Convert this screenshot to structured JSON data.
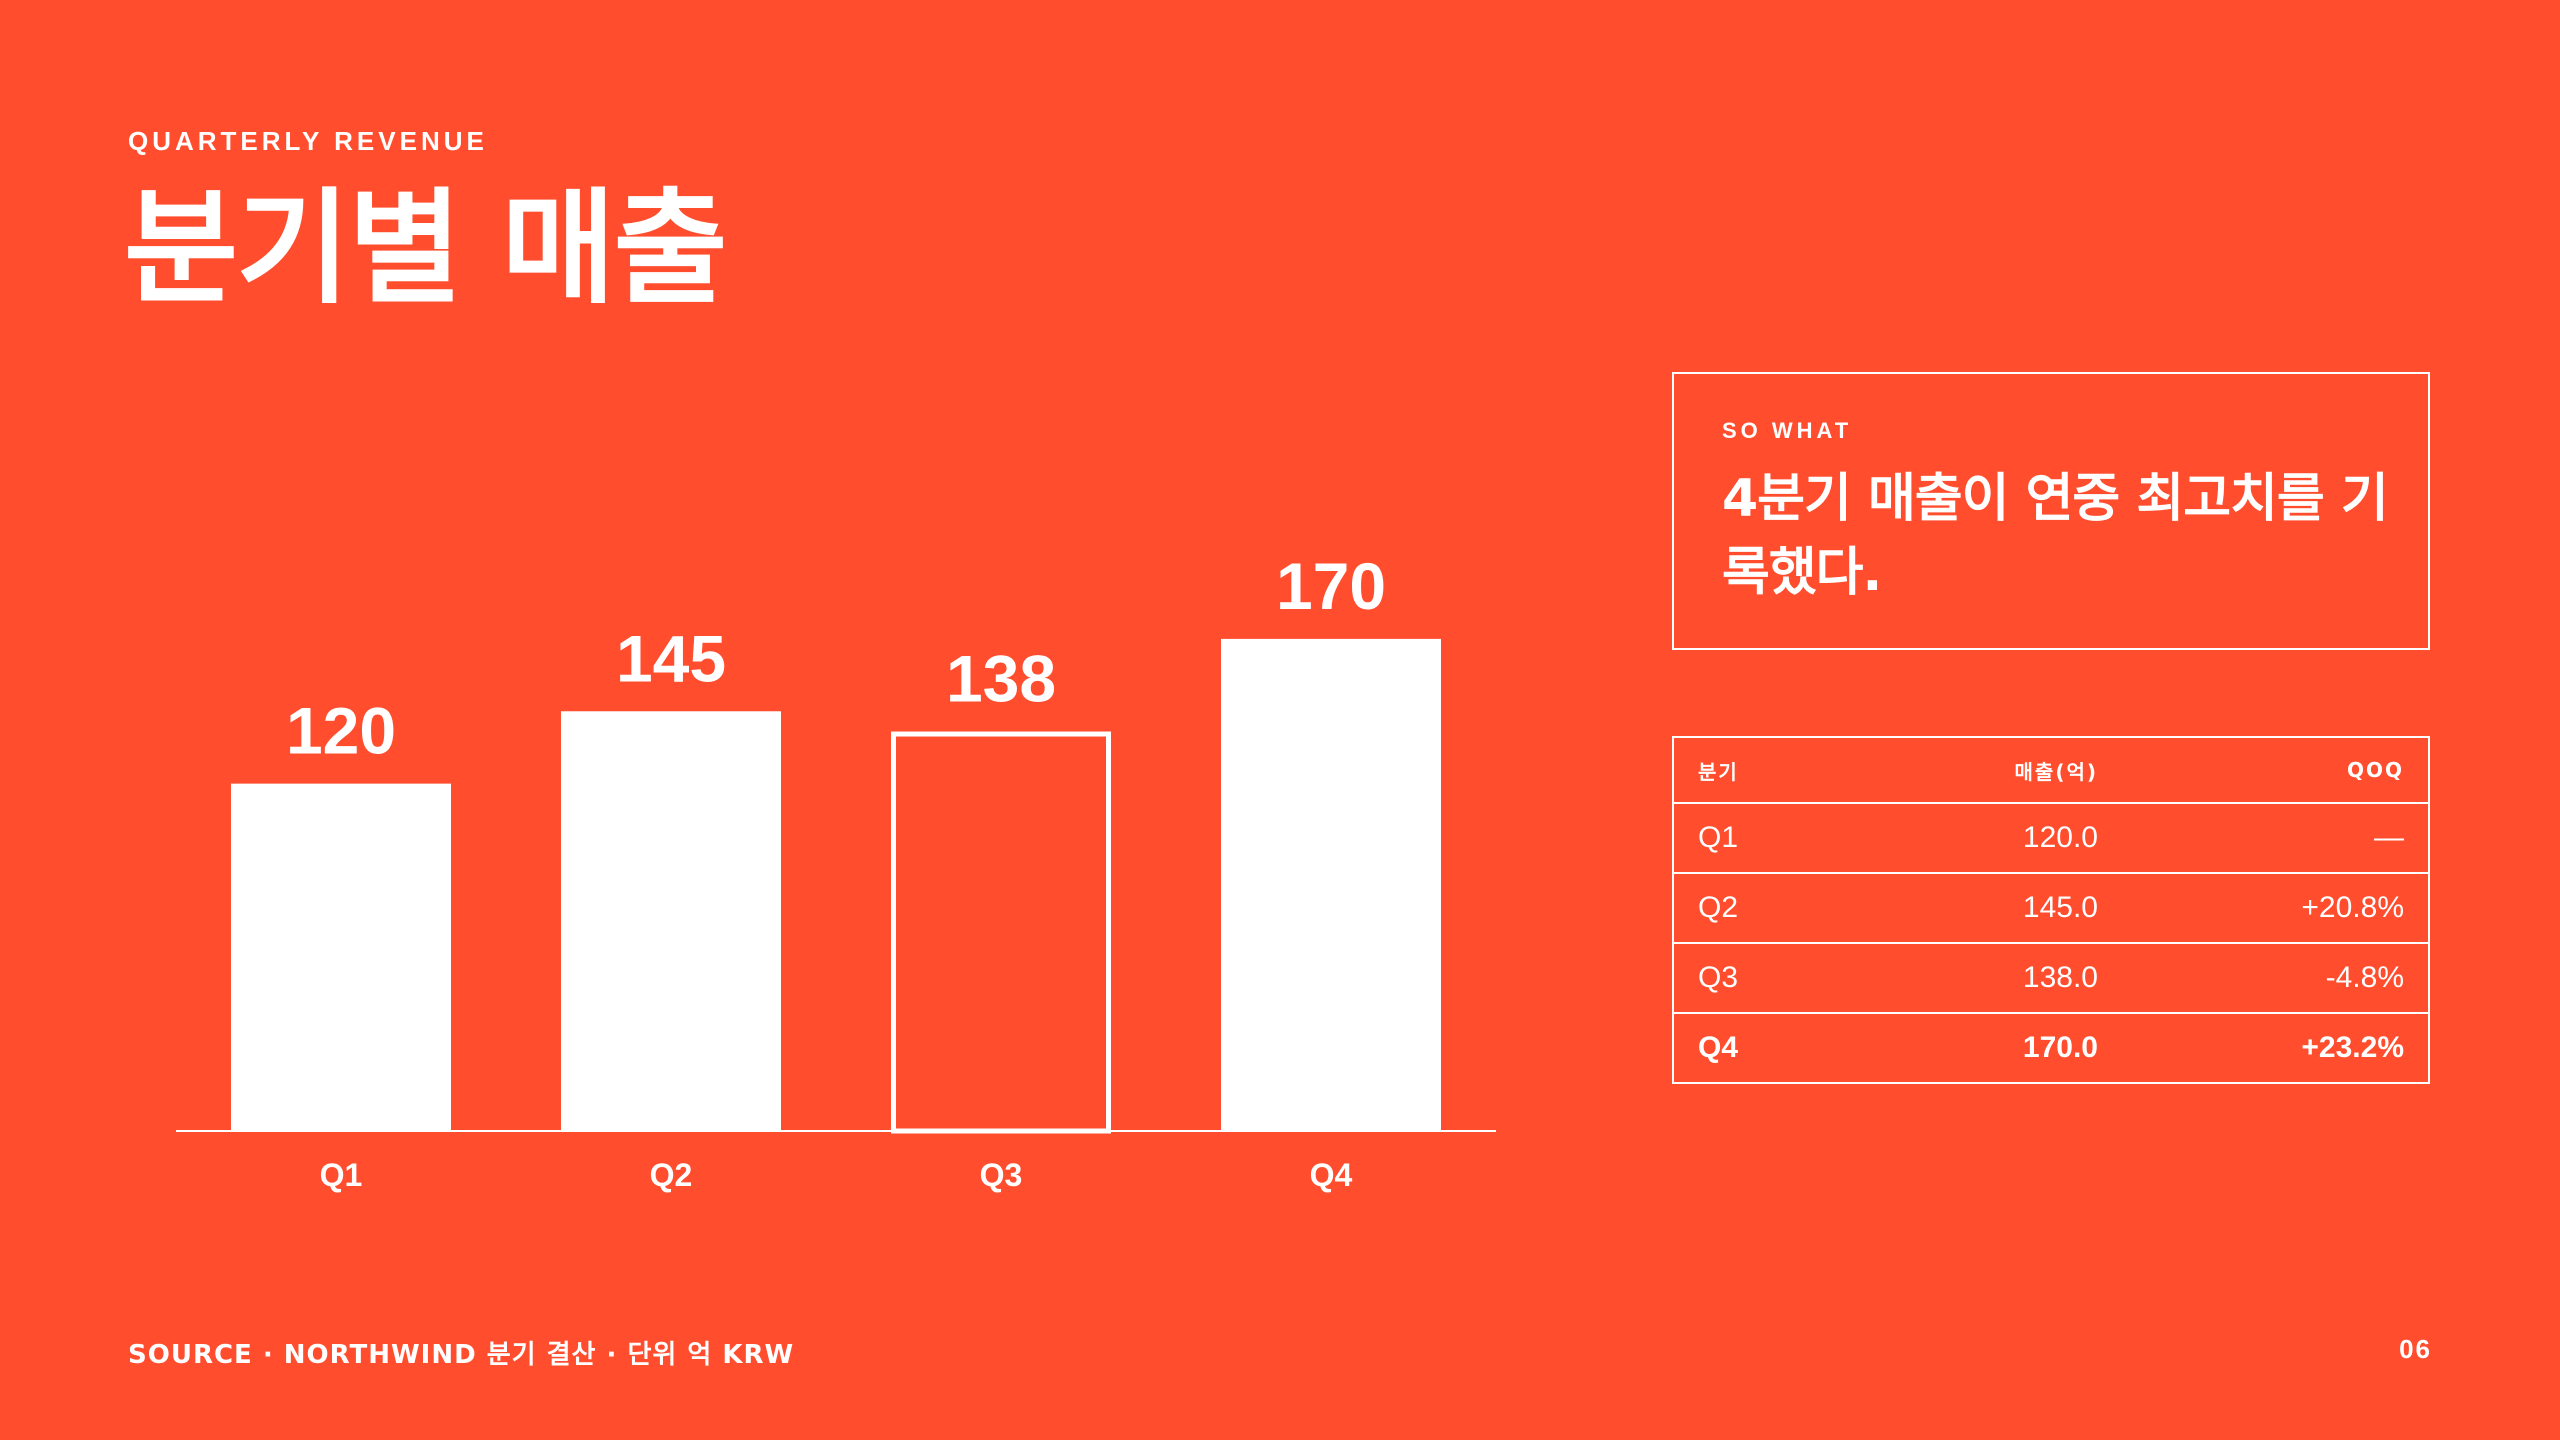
{
  "header": {
    "eyebrow": "QUARTERLY REVENUE",
    "title": "분기별 매출"
  },
  "chart_data": {
    "type": "bar",
    "categories": [
      "Q1",
      "Q2",
      "Q3",
      "Q4"
    ],
    "values": [
      120,
      145,
      138,
      170
    ],
    "data_labels": [
      "120",
      "145",
      "138",
      "170"
    ],
    "ylim": [
      0,
      190
    ],
    "grid": false,
    "legend": "none",
    "bar_styles": [
      "filled",
      "filled",
      "outlined",
      "filled"
    ]
  },
  "so_what": {
    "eyebrow": "SO WHAT",
    "text": "4분기 매출이 연중 최고치를 기록했다."
  },
  "table": {
    "headers": [
      "분기",
      "매출(억)",
      "QOQ"
    ],
    "rows": [
      {
        "quarter": "Q1",
        "revenue": "120.0",
        "qoq": "—",
        "highlight": false
      },
      {
        "quarter": "Q2",
        "revenue": "145.0",
        "qoq": "+20.8%",
        "highlight": false
      },
      {
        "quarter": "Q3",
        "revenue": "138.0",
        "qoq": "-4.8%",
        "highlight": false
      },
      {
        "quarter": "Q4",
        "revenue": "170.0",
        "qoq": "+23.2%",
        "highlight": true
      }
    ]
  },
  "footer": {
    "source": "SOURCE · NORTHWIND 분기 결산 · 단위 억 KRW",
    "page_number": "06"
  },
  "colors": {
    "background": "#FF4D2E",
    "foreground": "#FFFFFF"
  }
}
